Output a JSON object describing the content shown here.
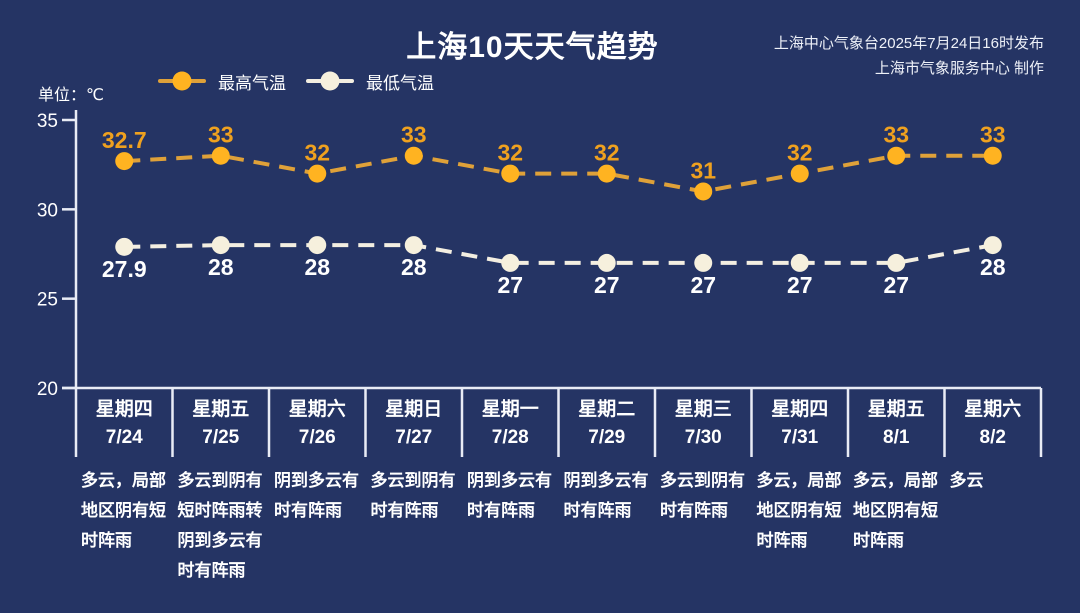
{
  "header": {
    "title": "上海10天天气趋势",
    "source_line1": "上海中心气象台2025年7月24日16时发布",
    "source_line2": "上海市气象服务中心 制作"
  },
  "unit_label": "单位：℃",
  "legend": {
    "high_label": "最高气温",
    "low_label": "最低气温"
  },
  "colors": {
    "background": "#253464",
    "axis": "#e9ecf5",
    "text": "#ffffff",
    "high_line": "#dfa139",
    "high_marker": "#ffb321",
    "high_value_label": "#efa11f",
    "low_line": "#f3eee1",
    "low_marker": "#f6f0dd",
    "low_value_label": "#ffffff"
  },
  "chart_data": {
    "type": "line",
    "title": "上海10天天气趋势",
    "ylabel": "单位：℃",
    "ylim": [
      20,
      35
    ],
    "yticks": [
      35,
      30,
      25,
      20
    ],
    "grid": false,
    "legend_position": "top",
    "days": [
      "星期四",
      "星期五",
      "星期六",
      "星期日",
      "星期一",
      "星期二",
      "星期三",
      "星期四",
      "星期五",
      "星期六"
    ],
    "dates": [
      "7/24",
      "7/25",
      "7/26",
      "7/27",
      "7/28",
      "7/29",
      "7/30",
      "7/31",
      "8/1",
      "8/2"
    ],
    "series": [
      {
        "name": "最高气温",
        "values": [
          32.7,
          33,
          32,
          33,
          32,
          32,
          31,
          32,
          33,
          33
        ]
      },
      {
        "name": "最低气温",
        "values": [
          27.9,
          28,
          28,
          28,
          27,
          27,
          27,
          27,
          27,
          28
        ]
      }
    ],
    "weather": [
      "多云，局部地区阴有短时阵雨",
      "多云到阴有短时阵雨转阴到多云有时有阵雨",
      "阴到多云有时有阵雨",
      "多云到阴有时有阵雨",
      "阴到多云有时有阵雨",
      "阴到多云有时有阵雨",
      "多云到阴有时有阵雨",
      "多云，局部地区阴有短时阵雨",
      "多云，局部地区阴有短时阵雨",
      "多云"
    ]
  }
}
